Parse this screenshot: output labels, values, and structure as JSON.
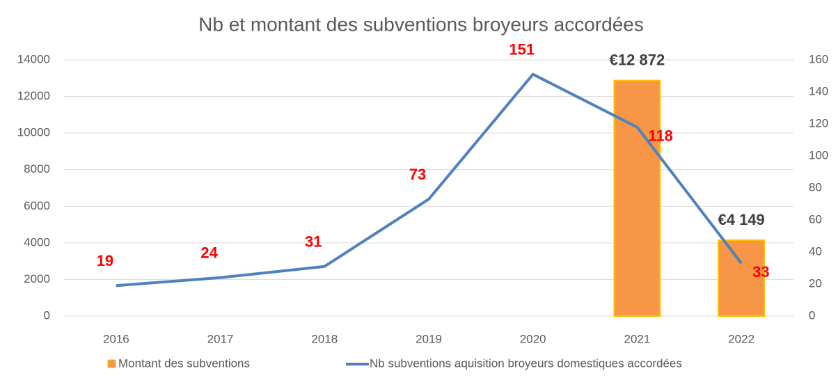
{
  "chart_data": {
    "type": "bar-line",
    "title": "Nb et montant des subventions broyeurs accordées",
    "categories": [
      "2016",
      "2017",
      "2018",
      "2019",
      "2020",
      "2021",
      "2022"
    ],
    "series": [
      {
        "name": "Montant des subventions",
        "type": "bar",
        "color": "#f79646",
        "edgecolor": "#ffc000",
        "values": [
          null,
          null,
          null,
          null,
          null,
          12872,
          4149
        ],
        "value_labels": [
          null,
          null,
          null,
          null,
          null,
          "€12 872",
          "€4 149"
        ]
      },
      {
        "name": "Nb subventions aquisition broyeurs domestiques accordées",
        "type": "line",
        "axis": "y2",
        "color": "#4f81bd",
        "values": [
          19,
          24,
          31,
          73,
          151,
          118,
          33
        ]
      }
    ],
    "ylim": [
      0,
      14000
    ],
    "yticks": [
      0,
      2000,
      4000,
      6000,
      8000,
      10000,
      12000,
      14000
    ],
    "y2lim": [
      0,
      160
    ],
    "y2ticks": [
      0,
      20,
      40,
      60,
      80,
      100,
      120,
      140,
      160
    ],
    "grid": true,
    "legend": "bottom"
  }
}
